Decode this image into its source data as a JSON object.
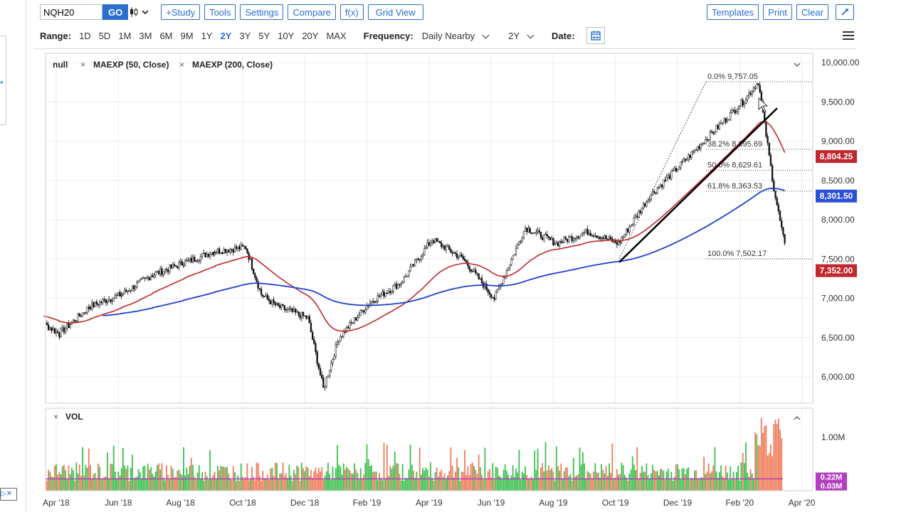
{
  "toolbar": {
    "symbol_value": "NQH20",
    "go_label": "GO",
    "chart_type_icon": "candlestick-icon",
    "buttons": [
      "+Study",
      "Tools",
      "Settings",
      "Compare",
      "f(x)",
      "Grid View"
    ],
    "right_buttons": [
      "Templates",
      "Print",
      "Clear"
    ],
    "right_icon": "draw-tool-icon"
  },
  "range": {
    "label": "Range:",
    "options": [
      "1D",
      "5D",
      "1M",
      "3M",
      "6M",
      "9M",
      "1Y",
      "2Y",
      "3Y",
      "5Y",
      "10Y",
      "20Y",
      "MAX"
    ],
    "active": "2Y",
    "frequency_label": "Frequency:",
    "frequency_value": "Daily Nearby",
    "period_value": "2Y",
    "date_label": "Date:"
  },
  "studies": {
    "main_label": "null",
    "ma50_label": "MAEXP (50, Close)",
    "ma200_label": "MAEXP (200, Close)",
    "vol_label": "VOL"
  },
  "colors": {
    "accent": "#2a6fd0",
    "ma50": "#c0282d",
    "ma200": "#1f3fd1",
    "vol_up": "#3dbf4e",
    "vol_down": "#f07b5a",
    "vol_ma": "#b040c0",
    "badge_red": "#c0282d",
    "badge_blue": "#2a4fd8"
  },
  "chart_data": {
    "type": "candlestick",
    "symbol": "NQH20",
    "yticks": [
      "10,000.00",
      "9,500.00",
      "9,000.00",
      "8,500.00",
      "8,000.00",
      "7,500.00",
      "7,000.00",
      "6,500.00",
      "6,000.00"
    ],
    "xticks": [
      "Apr '18",
      "Jun '18",
      "Aug '18",
      "Oct '18",
      "Dec '18",
      "Feb '19",
      "Apr '19",
      "Jun '19",
      "Aug '19",
      "Oct '19",
      "Dec '19",
      "Feb '20",
      "Apr '20"
    ],
    "price_badges": [
      {
        "value": "8,804.25",
        "series": "MAEXP 50"
      },
      {
        "value": "8,301.50",
        "series": "MAEXP 200"
      },
      {
        "value": "7,352.00",
        "series": "last"
      }
    ],
    "fib_levels": [
      {
        "label": "0.0% 9,757.05",
        "value": 9757.05
      },
      {
        "label": "38.2% 8,895.69",
        "value": 8895.69
      },
      {
        "label": "50.0% 8,629.61",
        "value": 8629.61
      },
      {
        "label": "61.8% 8,363.53",
        "value": 8363.53
      },
      {
        "label": "100.0% 7,502.17",
        "value": 7502.17
      }
    ],
    "price_anchors": [
      [
        "Mar '18",
        6800
      ],
      [
        "Apr '18",
        6550
      ],
      [
        "May '18",
        6900
      ],
      [
        "Jun '18",
        7050
      ],
      [
        "Jul '18",
        7300
      ],
      [
        "Aug '18",
        7450
      ],
      [
        "Sep '18",
        7600
      ],
      [
        "Oct '18",
        7650
      ],
      [
        "Oct '18",
        7050
      ],
      [
        "Nov '18",
        6900
      ],
      [
        "Dec '18",
        6750
      ],
      [
        "Dec '18",
        5850
      ],
      [
        "Jan '19",
        6500
      ],
      [
        "Feb '19",
        6950
      ],
      [
        "Mar '19",
        7200
      ],
      [
        "Apr '19",
        7750
      ],
      [
        "May '19",
        7500
      ],
      [
        "Jun '19",
        7000
      ],
      [
        "Jul '19",
        7900
      ],
      [
        "Aug '19",
        7700
      ],
      [
        "Sep '19",
        7850
      ],
      [
        "Oct '19",
        7700
      ],
      [
        "Nov '19",
        8300
      ],
      [
        "Dec '19",
        8700
      ],
      [
        "Jan '20",
        9100
      ],
      [
        "Feb '20",
        9500
      ],
      [
        "Feb '20",
        9757
      ],
      [
        "Mar '20",
        8400
      ],
      [
        "Mar '20",
        7352
      ]
    ],
    "ma50": {
      "name": "MAEXP (50, Close)",
      "last": 8804.25
    },
    "ma200": {
      "name": "MAEXP (200, Close)",
      "last": 8301.5
    },
    "volume": {
      "yticks": [
        "1.00M"
      ],
      "badges": [
        "0.22M",
        "0.03M"
      ]
    }
  }
}
